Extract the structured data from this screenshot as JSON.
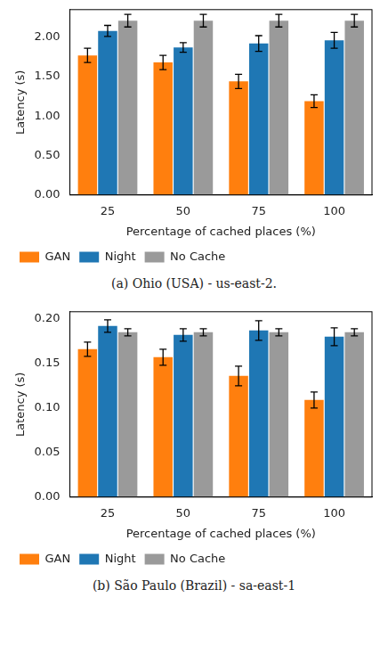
{
  "chart_data": [
    {
      "type": "bar",
      "title": "(a) Ohio (USA) - us-east-2.",
      "x_label": "Percentage of cached places (%)",
      "y_label": "Latency (s)",
      "categories": [
        "25",
        "50",
        "75",
        "100"
      ],
      "series": [
        {
          "name": "GAN",
          "color": "#ff7f0e",
          "values": [
            1.77,
            1.68,
            1.44,
            1.19
          ],
          "errors": [
            0.09,
            0.09,
            0.09,
            0.08
          ]
        },
        {
          "name": "Night",
          "color": "#1f77b4",
          "values": [
            2.08,
            1.87,
            1.92,
            1.96
          ],
          "errors": [
            0.07,
            0.06,
            0.1,
            0.1
          ]
        },
        {
          "name": "No Cache",
          "color": "#9a9a9a",
          "values": [
            2.21,
            2.21,
            2.21,
            2.21
          ],
          "errors": [
            0.08,
            0.08,
            0.08,
            0.08
          ]
        }
      ],
      "ylim": [
        0,
        2.35
      ],
      "yticks": [
        {
          "value": 0,
          "label": "0.00"
        },
        {
          "value": 0.5,
          "label": "0.50"
        },
        {
          "value": 1,
          "label": "1.00"
        },
        {
          "value": 1.5,
          "label": "1.50"
        },
        {
          "value": 2,
          "label": "2.00"
        }
      ],
      "legend": "lower left",
      "grid": false
    },
    {
      "type": "bar",
      "title": "(b) São Paulo (Brazil) - sa-east-1",
      "x_label": "Percentage of cached places (%)",
      "y_label": "Latency (s)",
      "categories": [
        "25",
        "50",
        "75",
        "100"
      ],
      "series": [
        {
          "name": "GAN",
          "color": "#ff7f0e",
          "values": [
            0.166,
            0.157,
            0.136,
            0.109
          ],
          "errors": [
            0.008,
            0.009,
            0.011,
            0.009
          ]
        },
        {
          "name": "Night",
          "color": "#1f77b4",
          "values": [
            0.192,
            0.182,
            0.187,
            0.18
          ],
          "errors": [
            0.007,
            0.007,
            0.011,
            0.01
          ]
        },
        {
          "name": "No Cache",
          "color": "#9a9a9a",
          "values": [
            0.185,
            0.185,
            0.185,
            0.185
          ],
          "errors": [
            0.004,
            0.004,
            0.004,
            0.004
          ]
        }
      ],
      "ylim": [
        0,
        0.208
      ],
      "yticks": [
        {
          "value": 0,
          "label": "0.00"
        },
        {
          "value": 0.05,
          "label": "0.05"
        },
        {
          "value": 0.1,
          "label": "0.10"
        },
        {
          "value": 0.15,
          "label": "0.15"
        },
        {
          "value": 0.2,
          "label": "0.20"
        }
      ],
      "legend": "lower left",
      "grid": false
    }
  ]
}
